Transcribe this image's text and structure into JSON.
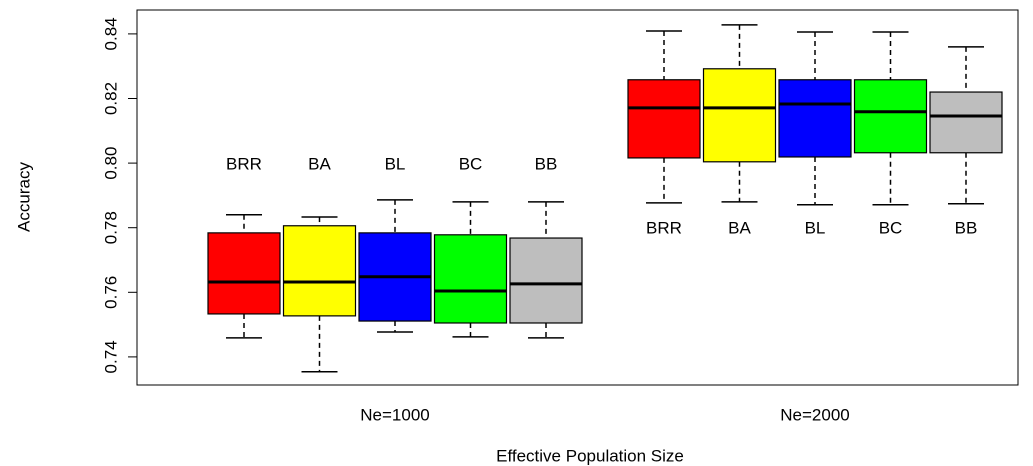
{
  "chart_data": {
    "type": "box",
    "x_label": "Effective Population Size",
    "y_label": "Accuracy",
    "categories": [
      "Ne=1000",
      "Ne=2000"
    ],
    "ylim": [
      0.7313,
      0.8474
    ],
    "yticks": [
      0.74,
      0.76,
      0.78,
      {
        "value": 0.8,
        "label": "0.80"
      },
      0.82,
      0.84
    ],
    "series": [
      {
        "name": "BRR",
        "color": "#ff0000",
        "whislo": [
          0.7459,
          0.7877
        ],
        "q1": [
          0.7533,
          0.8016
        ],
        "med": [
          0.7632,
          0.8171
        ],
        "q3": [
          0.7784,
          0.8258
        ],
        "whishi": [
          0.784,
          0.8409
        ]
      },
      {
        "name": "BA",
        "color": "#ffff00",
        "whislo": [
          0.7354,
          0.788
        ],
        "q1": [
          0.7527,
          0.8004
        ],
        "med": [
          0.7632,
          0.8171
        ],
        "q3": [
          0.7806,
          0.8292
        ],
        "whishi": [
          0.7833,
          0.8428
        ]
      },
      {
        "name": "BL",
        "color": "#0000ff",
        "whislo": [
          0.7477,
          0.7871
        ],
        "q1": [
          0.7511,
          0.8019
        ],
        "med": [
          0.7648,
          0.8183
        ],
        "q3": [
          0.7784,
          0.8258
        ],
        "whishi": [
          0.7886,
          0.8406
        ]
      },
      {
        "name": "BC",
        "color": "#00ff00",
        "whislo": [
          0.7462,
          0.7871
        ],
        "q1": [
          0.7505,
          0.8032
        ],
        "med": [
          0.7604,
          0.8159
        ],
        "q3": [
          0.7778,
          0.8258
        ],
        "whishi": [
          0.788,
          0.8406
        ]
      },
      {
        "name": "BB",
        "color": "#bebebe",
        "whislo": [
          0.7459,
          0.7874
        ],
        "q1": [
          0.7505,
          0.8032
        ],
        "med": [
          0.7626,
          0.8146
        ],
        "q3": [
          0.7768,
          0.822
        ],
        "whishi": [
          0.788,
          0.836
        ]
      }
    ]
  }
}
